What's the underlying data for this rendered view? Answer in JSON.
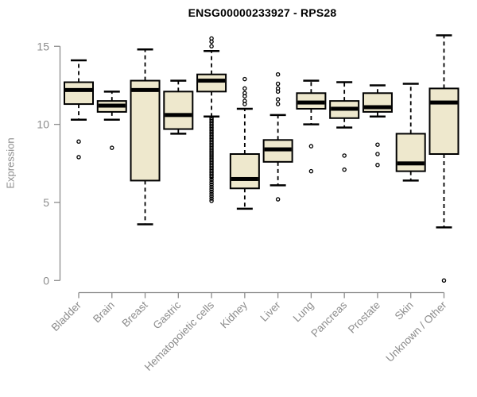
{
  "chart_data": {
    "type": "boxplot",
    "title": "ENSG00000233927 - RPS28",
    "ylabel": "Expression",
    "ylim": [
      0,
      15
    ],
    "yticks": [
      0,
      5,
      10,
      15
    ],
    "grid": false,
    "legend": "none",
    "categories": [
      "Bladder",
      "Brain",
      "Breast",
      "Gastric",
      "Hematopoietic cells",
      "Kidney",
      "Liver",
      "Lung",
      "Pancreas",
      "Prostate",
      "Skin",
      "Unknown / Other"
    ],
    "series": [
      {
        "category": "Bladder",
        "whisker_low": 10.3,
        "q1": 11.3,
        "median": 12.2,
        "q3": 12.7,
        "whisker_high": 14.1,
        "outliers": [
          8.9,
          7.9
        ]
      },
      {
        "category": "Brain",
        "whisker_low": 10.3,
        "q1": 10.8,
        "median": 11.2,
        "q3": 11.5,
        "whisker_high": 12.1,
        "outliers": [
          8.5
        ]
      },
      {
        "category": "Breast",
        "whisker_low": 3.6,
        "q1": 6.4,
        "median": 12.2,
        "q3": 12.8,
        "whisker_high": 14.8,
        "outliers": []
      },
      {
        "category": "Gastric",
        "whisker_low": 9.4,
        "q1": 9.7,
        "median": 10.6,
        "q3": 12.1,
        "whisker_high": 12.8,
        "outliers": []
      },
      {
        "category": "Hematopoietic cells",
        "whisker_low": 10.5,
        "q1": 12.1,
        "median": 12.8,
        "q3": 13.2,
        "whisker_high": 14.7,
        "outliers": [
          15.5,
          15.3,
          15.0,
          10.4,
          10.3,
          10.2,
          10.1,
          10.0,
          9.9,
          9.8,
          9.7,
          9.6,
          9.5,
          9.4,
          9.3,
          9.2,
          9.1,
          9.0,
          8.9,
          8.8,
          8.7,
          8.6,
          8.5,
          8.4,
          8.3,
          8.2,
          8.1,
          8.0,
          7.9,
          7.8,
          7.7,
          7.6,
          7.5,
          7.4,
          7.3,
          7.2,
          7.1,
          7.0,
          6.9,
          6.8,
          6.7,
          6.6,
          6.45,
          6.3,
          6.15,
          6.0,
          5.85,
          5.7,
          5.55,
          5.4,
          5.25,
          5.1
        ]
      },
      {
        "category": "Kidney",
        "whisker_low": 4.6,
        "q1": 5.9,
        "median": 6.5,
        "q3": 8.1,
        "whisker_high": 11.0,
        "outliers": [
          12.9,
          12.3,
          12.0,
          11.8,
          11.5,
          11.3
        ]
      },
      {
        "category": "Liver",
        "whisker_low": 6.1,
        "q1": 7.6,
        "median": 8.4,
        "q3": 9.0,
        "whisker_high": 10.6,
        "outliers": [
          13.2,
          12.6,
          12.3,
          12.1,
          11.6,
          11.3,
          5.2
        ]
      },
      {
        "category": "Lung",
        "whisker_low": 10.0,
        "q1": 11.0,
        "median": 11.4,
        "q3": 12.0,
        "whisker_high": 12.8,
        "outliers": [
          8.6,
          7.0
        ]
      },
      {
        "category": "Pancreas",
        "whisker_low": 9.8,
        "q1": 10.4,
        "median": 11.0,
        "q3": 11.5,
        "whisker_high": 12.7,
        "outliers": [
          8.0,
          7.1
        ]
      },
      {
        "category": "Prostate",
        "whisker_low": 10.5,
        "q1": 10.8,
        "median": 11.1,
        "q3": 12.0,
        "whisker_high": 12.5,
        "outliers": [
          8.7,
          8.1,
          7.4
        ]
      },
      {
        "category": "Skin",
        "whisker_low": 6.4,
        "q1": 7.0,
        "median": 7.5,
        "q3": 9.4,
        "whisker_high": 12.6,
        "outliers": []
      },
      {
        "category": "Unknown / Other",
        "whisker_low": 3.4,
        "q1": 8.1,
        "median": 11.4,
        "q3": 12.3,
        "whisker_high": 15.7,
        "outliers": [
          0.0
        ]
      }
    ],
    "colors": {
      "background": "#FFFFFF",
      "box_fill": "#EEE8CD",
      "box_stroke": "#000000",
      "median": "#000000",
      "axis": "#8C8C8C",
      "axis_text": "#8C8C8C",
      "title": "#000000"
    }
  }
}
